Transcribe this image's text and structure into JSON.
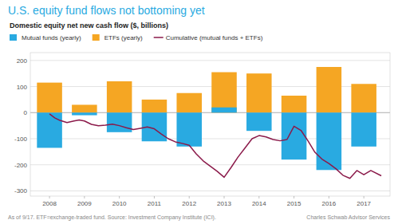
{
  "chart_data": {
    "type": "bar",
    "title": "U.S. equity fund flows not bottoming yet",
    "subtitle": "Domestic equity net new cash flow ($, billions)",
    "annotations": [
      "As of 9/17. ETF=exchange-traded fund. Source: Investment Company Institute (ICI).",
      "Charles Schwab Advisor Services"
    ],
    "x": [
      2008,
      2009,
      2010,
      2011,
      2012,
      2013,
      2014,
      2015,
      2016,
      2017
    ],
    "series": [
      {
        "name": "Mutual funds (yearly)",
        "type": "bar",
        "color": "#29aae1",
        "values": [
          -135,
          -10,
          -75,
          -110,
          -130,
          20,
          -70,
          -180,
          -220,
          -130
        ]
      },
      {
        "name": "ETFs (yearly)",
        "type": "bar",
        "color": "#f5a623",
        "values": [
          115,
          30,
          120,
          50,
          75,
          155,
          150,
          65,
          175,
          110
        ]
      },
      {
        "name": "Cumulative (mutual funds + ETFs)",
        "type": "line",
        "color": "#8b1a4a",
        "x": [
          2008.0,
          2008.15,
          2008.3,
          2008.5,
          2008.7,
          2008.85,
          2009.0,
          2009.2,
          2009.4,
          2009.6,
          2009.8,
          2010.0,
          2010.2,
          2010.4,
          2010.6,
          2010.8,
          2011.0,
          2011.2,
          2011.4,
          2011.6,
          2011.8,
          2012.0,
          2012.2,
          2012.4,
          2012.6,
          2012.8,
          2013.0,
          2013.2,
          2013.4,
          2013.6,
          2013.8,
          2014.0,
          2014.2,
          2014.4,
          2014.6,
          2014.8,
          2015.0,
          2015.2,
          2015.4,
          2015.6,
          2015.8,
          2016.0,
          2016.2,
          2016.4,
          2016.6,
          2016.8,
          2017.0,
          2017.2,
          2017.5
        ],
        "values": [
          -5,
          -20,
          -30,
          -38,
          -32,
          -28,
          -32,
          -45,
          -50,
          -48,
          -44,
          -50,
          -58,
          -65,
          -60,
          -55,
          -62,
          -82,
          -100,
          -112,
          -118,
          -125,
          -158,
          -185,
          -205,
          -225,
          -248,
          -210,
          -170,
          -135,
          -100,
          -88,
          -93,
          -103,
          -108,
          -103,
          -52,
          -68,
          -108,
          -152,
          -178,
          -195,
          -215,
          -240,
          -252,
          -222,
          -238,
          -222,
          -242
        ]
      }
    ],
    "xlim": [
      2007.45,
      2017.75
    ],
    "xticks": [
      2008,
      2009,
      2010,
      2011,
      2012,
      2013,
      2014,
      2015,
      2016,
      2017
    ],
    "ylim": [
      -320,
      230
    ],
    "yticks": [
      -300,
      -200,
      -100,
      0,
      100,
      200
    ],
    "grid": true,
    "legend": "top"
  }
}
